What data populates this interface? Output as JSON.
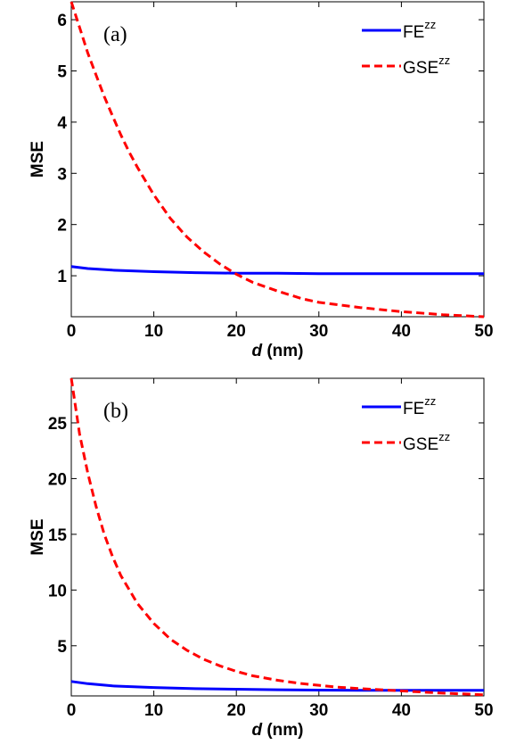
{
  "chart_data": [
    {
      "type": "line",
      "panel_label": "(a)",
      "xlabel_italic": "d",
      "xlabel_rest": " (nm)",
      "ylabel": "MSE",
      "xlim": [
        0,
        50
      ],
      "ylim": [
        0.2,
        6.35
      ],
      "xticks": [
        0,
        10,
        20,
        30,
        40,
        50
      ],
      "yticks": [
        1,
        2,
        3,
        4,
        5,
        6
      ],
      "legend_position": "top-right",
      "series": [
        {
          "name_base": "FE",
          "name_sup": "zz",
          "color": "#0000ff",
          "style": "solid",
          "x": [
            0,
            2,
            5,
            10,
            15,
            20,
            25,
            30,
            35,
            40,
            45,
            50
          ],
          "y": [
            1.18,
            1.14,
            1.11,
            1.08,
            1.06,
            1.05,
            1.05,
            1.04,
            1.04,
            1.04,
            1.04,
            1.04
          ]
        },
        {
          "name_base": "GSE",
          "name_sup": "zz",
          "color": "#ff0000",
          "style": "dashed",
          "x": [
            0,
            1,
            2,
            3,
            4,
            5,
            6,
            7,
            8,
            10,
            12,
            14,
            16,
            18,
            20,
            22,
            25,
            28,
            30,
            35,
            40,
            45,
            50
          ],
          "y": [
            6.35,
            5.85,
            5.35,
            4.92,
            4.5,
            4.12,
            3.75,
            3.42,
            3.12,
            2.58,
            2.12,
            1.76,
            1.47,
            1.23,
            1.03,
            0.87,
            0.7,
            0.55,
            0.48,
            0.38,
            0.3,
            0.24,
            0.2
          ]
        }
      ]
    },
    {
      "type": "line",
      "panel_label": "(b)",
      "xlabel_italic": "d",
      "xlabel_rest": " (nm)",
      "ylabel": "MSE",
      "xlim": [
        0,
        50
      ],
      "ylim": [
        0.5,
        29
      ],
      "xticks": [
        0,
        10,
        20,
        30,
        40,
        50
      ],
      "yticks": [
        5,
        10,
        15,
        20,
        25
      ],
      "legend_position": "top-right",
      "series": [
        {
          "name_base": "FE",
          "name_sup": "zz",
          "color": "#0000ff",
          "style": "solid",
          "x": [
            0,
            2,
            5,
            10,
            15,
            20,
            25,
            30,
            35,
            40,
            45,
            50
          ],
          "y": [
            1.8,
            1.6,
            1.4,
            1.25,
            1.15,
            1.1,
            1.05,
            1.02,
            1.0,
            1.0,
            1.0,
            1.0
          ]
        },
        {
          "name_base": "GSE",
          "name_sup": "zz",
          "color": "#ff0000",
          "style": "dashed",
          "x": [
            0,
            1,
            2,
            3,
            4,
            5,
            6,
            8,
            10,
            12,
            14,
            16,
            18,
            20,
            22,
            25,
            28,
            30,
            32,
            35,
            40,
            45,
            50
          ],
          "y": [
            29,
            24,
            20.5,
            17.5,
            15,
            13,
            11.3,
            8.8,
            7,
            5.6,
            4.6,
            3.8,
            3.2,
            2.7,
            2.3,
            1.9,
            1.6,
            1.45,
            1.3,
            1.15,
            0.95,
            0.75,
            0.6
          ]
        }
      ]
    }
  ]
}
